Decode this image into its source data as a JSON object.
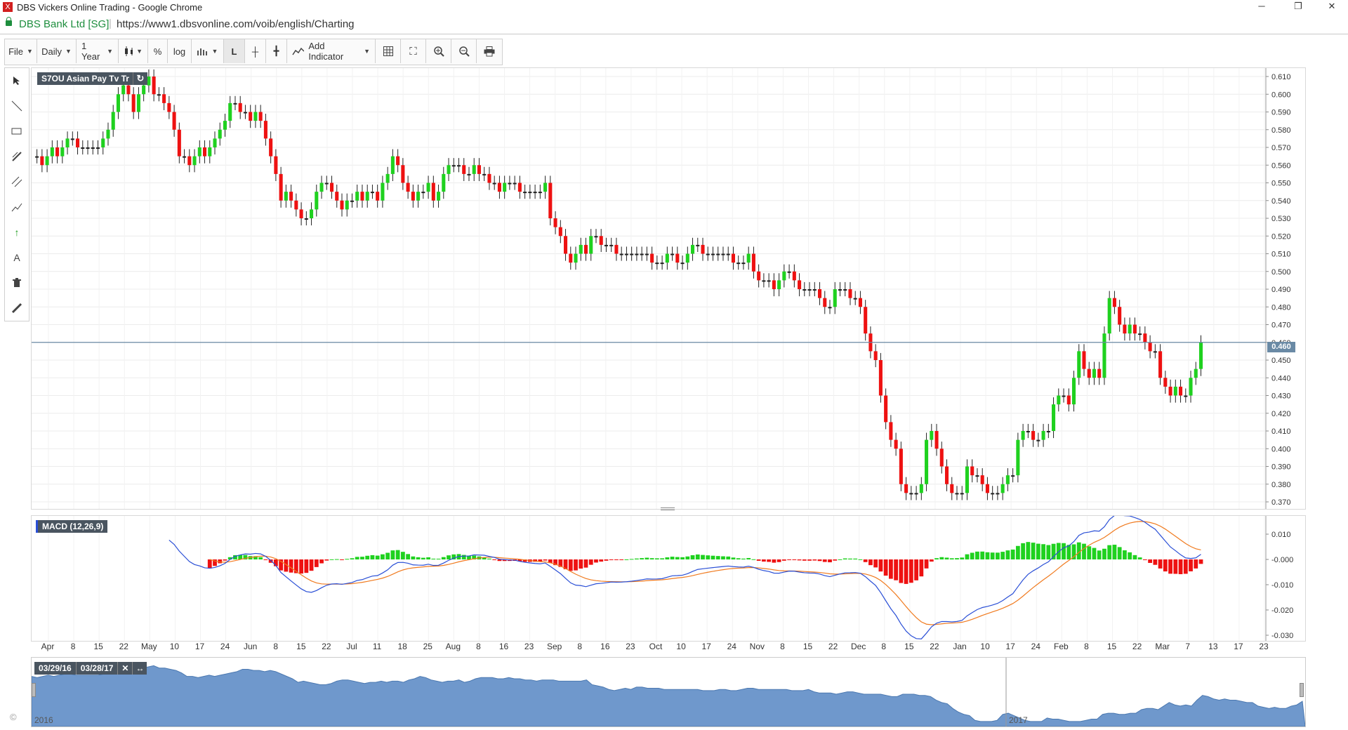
{
  "window": {
    "title": "DBS Vickers Online Trading - Google Chrome",
    "app_icon": "X",
    "minimize": "─",
    "restore": "❐",
    "close": "✕"
  },
  "address": {
    "site": "DBS Bank Ltd [SG]",
    "url": "https://www1.dbsvonline.com/voib/english/Charting"
  },
  "toolbar": {
    "file": "File",
    "interval": "Daily",
    "range": "1 Year",
    "percent": "%",
    "log": "log",
    "line": "L",
    "add_indicator": "Add Indicator"
  },
  "chart": {
    "symbol_label": "S7OU Asian Pay Tv Tr",
    "current_price": "0.460",
    "macd_label": "MACD (12,26,9)",
    "colors": {
      "up": "#1fd11f",
      "down": "#ee1111",
      "macd": "#2a4fd6",
      "signal": "#f07a1e",
      "price_line": "#6a8aa5",
      "accent": "#4a5560"
    }
  },
  "navigator": {
    "start_date": "03/29/16",
    "end_date": "03/28/17",
    "year_start": "2016",
    "year_end": "2017",
    "fill_color": "#6f98cc"
  },
  "copyright": "©",
  "chart_data": [
    {
      "type": "candlestick",
      "title": "S7OU Asian Pay Tv Tr",
      "ylim": [
        0.37,
        0.61
      ],
      "yticks": [
        "0.610",
        "0.600",
        "0.590",
        "0.580",
        "0.570",
        "0.560",
        "0.550",
        "0.540",
        "0.530",
        "0.520",
        "0.510",
        "0.500",
        "0.490",
        "0.480",
        "0.470",
        "0.460",
        "0.450",
        "0.440",
        "0.430",
        "0.420",
        "0.410",
        "0.400",
        "0.390",
        "0.380",
        "0.370"
      ],
      "x_tick_labels": [
        "Apr",
        "8",
        "15",
        "22",
        "May",
        "10",
        "17",
        "24",
        "Jun",
        "8",
        "15",
        "22",
        "Jul",
        "11",
        "18",
        "25",
        "Aug",
        "8",
        "16",
        "23",
        "Sep",
        "8",
        "16",
        "23",
        "Oct",
        "10",
        "17",
        "24",
        "Nov",
        "8",
        "15",
        "22",
        "Dec",
        "8",
        "15",
        "22",
        "Jan",
        "10",
        "17",
        "24",
        "Feb",
        "8",
        "15",
        "22",
        "Mar",
        "7",
        "13",
        "17",
        "23"
      ],
      "closes": [
        0.565,
        0.56,
        0.565,
        0.57,
        0.565,
        0.57,
        0.575,
        0.575,
        0.57,
        0.57,
        0.57,
        0.57,
        0.57,
        0.575,
        0.58,
        0.59,
        0.6,
        0.605,
        0.6,
        0.59,
        0.6,
        0.605,
        0.61,
        0.6,
        0.6,
        0.595,
        0.59,
        0.58,
        0.565,
        0.565,
        0.56,
        0.565,
        0.57,
        0.565,
        0.57,
        0.575,
        0.58,
        0.585,
        0.595,
        0.595,
        0.59,
        0.59,
        0.585,
        0.59,
        0.585,
        0.575,
        0.565,
        0.555,
        0.54,
        0.545,
        0.54,
        0.535,
        0.53,
        0.53,
        0.535,
        0.545,
        0.55,
        0.55,
        0.545,
        0.54,
        0.535,
        0.54,
        0.54,
        0.545,
        0.54,
        0.545,
        0.545,
        0.54,
        0.55,
        0.555,
        0.565,
        0.56,
        0.55,
        0.545,
        0.54,
        0.545,
        0.545,
        0.55,
        0.54,
        0.545,
        0.555,
        0.56,
        0.56,
        0.56,
        0.555,
        0.555,
        0.56,
        0.555,
        0.555,
        0.55,
        0.55,
        0.545,
        0.55,
        0.55,
        0.55,
        0.545,
        0.545,
        0.545,
        0.545,
        0.545,
        0.55,
        0.53,
        0.525,
        0.52,
        0.51,
        0.505,
        0.51,
        0.515,
        0.51,
        0.52,
        0.52,
        0.515,
        0.515,
        0.515,
        0.51,
        0.51,
        0.51,
        0.51,
        0.51,
        0.51,
        0.51,
        0.505,
        0.505,
        0.505,
        0.51,
        0.51,
        0.505,
        0.505,
        0.51,
        0.515,
        0.515,
        0.51,
        0.51,
        0.51,
        0.51,
        0.51,
        0.51,
        0.505,
        0.505,
        0.505,
        0.51,
        0.5,
        0.495,
        0.495,
        0.495,
        0.49,
        0.495,
        0.5,
        0.5,
        0.495,
        0.49,
        0.49,
        0.49,
        0.49,
        0.485,
        0.48,
        0.48,
        0.49,
        0.49,
        0.49,
        0.485,
        0.485,
        0.48,
        0.465,
        0.455,
        0.45,
        0.43,
        0.415,
        0.405,
        0.4,
        0.38,
        0.375,
        0.375,
        0.375,
        0.38,
        0.405,
        0.41,
        0.4,
        0.39,
        0.38,
        0.375,
        0.375,
        0.375,
        0.39,
        0.385,
        0.385,
        0.38,
        0.375,
        0.375,
        0.375,
        0.38,
        0.385,
        0.385,
        0.405,
        0.41,
        0.41,
        0.405,
        0.405,
        0.41,
        0.41,
        0.425,
        0.43,
        0.43,
        0.425,
        0.44,
        0.455,
        0.445,
        0.44,
        0.445,
        0.44,
        0.465,
        0.485,
        0.48,
        0.47,
        0.465,
        0.47,
        0.465,
        0.465,
        0.46,
        0.455,
        0.455,
        0.44,
        0.435,
        0.43,
        0.435,
        0.43,
        0.43,
        0.44,
        0.445,
        0.46
      ]
    },
    {
      "type": "line",
      "title": "MACD (12,26,9)",
      "ylim": [
        -0.03,
        0.015
      ],
      "yticks": [
        "0.010",
        "-0.000",
        "-0.010",
        "-0.020",
        "-0.030"
      ],
      "series": []
    }
  ]
}
